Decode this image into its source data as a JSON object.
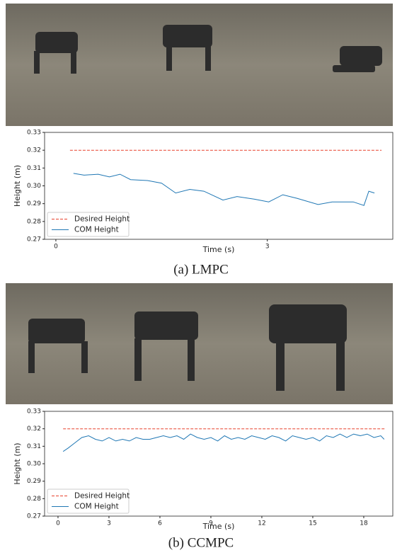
{
  "chart_data": [
    {
      "type": "line",
      "caption": "(a) LMPC",
      "xlabel": "Time (s)",
      "ylabel": "Height (m)",
      "xlim": [
        -0.16,
        4.78
      ],
      "xticks": [
        0,
        3
      ],
      "ylim": [
        0.27,
        0.33
      ],
      "yticks": [
        0.27,
        0.28,
        0.29,
        {
          "value": 0.3,
          "label": "0.30"
        },
        0.31,
        0.32,
        0.33
      ],
      "legend": "lower left",
      "series": [
        {
          "name": "Desired Height",
          "color": "#e8412d",
          "dashed": true,
          "x": [
            0.2,
            4.62
          ],
          "values": [
            0.32,
            0.32
          ]
        },
        {
          "name": "COM Height",
          "color": "#1f77b4",
          "dashed": false,
          "x": [
            0.25,
            0.4,
            0.6,
            0.76,
            0.91,
            1.06,
            1.3,
            1.5,
            1.7,
            1.9,
            2.1,
            2.37,
            2.57,
            2.82,
            3.02,
            3.22,
            3.42,
            3.72,
            3.92,
            4.22,
            4.37,
            4.44,
            4.52
          ],
          "values": [
            0.307,
            0.306,
            0.3065,
            0.305,
            0.3065,
            0.3035,
            0.303,
            0.3015,
            0.296,
            0.298,
            0.297,
            0.292,
            0.294,
            0.2925,
            0.291,
            0.295,
            0.293,
            0.2895,
            0.291,
            0.291,
            0.289,
            0.297,
            0.296
          ]
        }
      ]
    },
    {
      "type": "line",
      "caption": "(b) CCMPC",
      "xlabel": "Time (s)",
      "ylabel": "Height (m)",
      "xlim": [
        -0.79,
        19.71
      ],
      "xticks": [
        0,
        3,
        6,
        9,
        12,
        15,
        18
      ],
      "ylim": [
        0.27,
        0.33
      ],
      "yticks": [
        0.27,
        0.28,
        0.29,
        {
          "value": 0.3,
          "label": "0.30"
        },
        0.31,
        0.32,
        0.33
      ],
      "legend": "lower left",
      "series": [
        {
          "name": "Desired Height",
          "color": "#e8412d",
          "dashed": true,
          "x": [
            0.3,
            19.3
          ],
          "values": [
            0.32,
            0.32
          ]
        },
        {
          "name": "COM Height",
          "color": "#1f77b4",
          "dashed": false,
          "x": [
            0.3,
            0.6,
            1.0,
            1.4,
            1.8,
            2.2,
            2.6,
            3.0,
            3.4,
            3.8,
            4.2,
            4.6,
            5.0,
            5.4,
            5.8,
            6.2,
            6.6,
            7.0,
            7.4,
            7.8,
            8.2,
            8.6,
            9.0,
            9.4,
            9.8,
            10.2,
            10.6,
            11.0,
            11.4,
            11.8,
            12.2,
            12.6,
            13.0,
            13.4,
            13.8,
            14.2,
            14.6,
            15.0,
            15.4,
            15.8,
            16.2,
            16.6,
            17.0,
            17.4,
            17.8,
            18.2,
            18.6,
            19.0,
            19.2
          ],
          "values": [
            0.307,
            0.309,
            0.312,
            0.315,
            0.316,
            0.314,
            0.313,
            0.315,
            0.313,
            0.314,
            0.313,
            0.315,
            0.314,
            0.314,
            0.315,
            0.316,
            0.315,
            0.316,
            0.314,
            0.317,
            0.315,
            0.314,
            0.315,
            0.313,
            0.316,
            0.314,
            0.315,
            0.314,
            0.316,
            0.315,
            0.314,
            0.316,
            0.315,
            0.313,
            0.316,
            0.315,
            0.314,
            0.315,
            0.313,
            0.316,
            0.315,
            0.317,
            0.315,
            0.317,
            0.316,
            0.317,
            0.315,
            0.316,
            0.314
          ]
        }
      ]
    }
  ]
}
